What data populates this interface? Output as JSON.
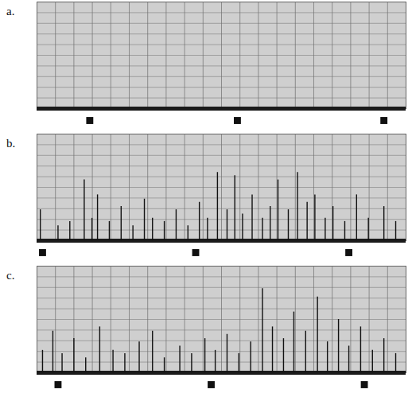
{
  "chart_data": [
    {
      "type": "spike",
      "title": "a.",
      "color": "#111111",
      "grid": true,
      "tick_labels": false,
      "xlim": [
        0,
        100
      ],
      "ylim": [
        0,
        100
      ],
      "xticks": [
        0,
        5,
        10,
        15,
        20,
        25,
        30,
        35,
        40,
        45,
        50,
        55,
        60,
        65,
        70,
        75,
        80,
        85,
        90,
        95,
        100
      ],
      "yticks": [
        0,
        10,
        20,
        30,
        40,
        50,
        60,
        70,
        80,
        90,
        100
      ],
      "x": [],
      "values": [],
      "time_marks": [
        14.3,
        54.3,
        94.0
      ]
    },
    {
      "type": "spike",
      "title": "b.",
      "color": "#111111",
      "grid": true,
      "tick_labels": false,
      "xlim": [
        0,
        100
      ],
      "ylim": [
        0,
        100
      ],
      "xticks": [
        0,
        5,
        10,
        15,
        20,
        25,
        30,
        35,
        40,
        45,
        50,
        55,
        60,
        65,
        70,
        75,
        80,
        85,
        90,
        95,
        100
      ],
      "yticks": [
        0,
        10,
        20,
        30,
        40,
        50,
        60,
        70,
        80,
        90,
        100
      ],
      "x": [
        0.9,
        5.7,
        8.9,
        12.8,
        14.9,
        16.4,
        19.6,
        22.8,
        26.0,
        29.1,
        31.3,
        34.5,
        37.7,
        40.9,
        44.0,
        46.2,
        48.9,
        51.5,
        53.6,
        55.7,
        58.3,
        61.1,
        63.2,
        65.3,
        68.1,
        70.6,
        73.2,
        75.3,
        78.1,
        80.2,
        83.4,
        86.6,
        89.8,
        94.0,
        97.2
      ],
      "values": [
        29,
        14,
        18,
        57,
        21,
        43,
        18,
        32,
        14,
        39,
        21,
        18,
        29,
        14,
        36,
        21,
        64,
        29,
        61,
        25,
        43,
        21,
        32,
        57,
        29,
        64,
        36,
        43,
        21,
        32,
        18,
        43,
        21,
        32,
        18
      ],
      "time_marks": [
        1.5,
        43.0,
        84.5
      ]
    },
    {
      "type": "spike",
      "title": "c.",
      "color": "#111111",
      "grid": true,
      "tick_labels": false,
      "xlim": [
        0,
        100
      ],
      "ylim": [
        0,
        100
      ],
      "xticks": [
        0,
        5,
        10,
        15,
        20,
        25,
        30,
        35,
        40,
        45,
        50,
        55,
        60,
        65,
        70,
        75,
        80,
        85,
        90,
        95,
        100
      ],
      "yticks": [
        0,
        10,
        20,
        30,
        40,
        50,
        60,
        70,
        80,
        90,
        100
      ],
      "x": [
        1.5,
        4.3,
        6.8,
        10.0,
        13.2,
        17.0,
        20.6,
        23.8,
        27.7,
        31.3,
        34.5,
        38.7,
        41.9,
        45.5,
        48.3,
        51.5,
        54.7,
        57.9,
        61.1,
        63.8,
        66.8,
        69.6,
        72.8,
        76.0,
        78.7,
        81.7,
        84.5,
        87.7,
        90.9,
        94.0,
        97.2
      ],
      "values": [
        21,
        39,
        18,
        32,
        14,
        43,
        21,
        18,
        29,
        39,
        14,
        25,
        18,
        32,
        21,
        36,
        18,
        29,
        79,
        43,
        32,
        57,
        39,
        71,
        29,
        50,
        25,
        43,
        21,
        32,
        18
      ],
      "time_marks": [
        5.7,
        47.2,
        88.7
      ]
    }
  ]
}
